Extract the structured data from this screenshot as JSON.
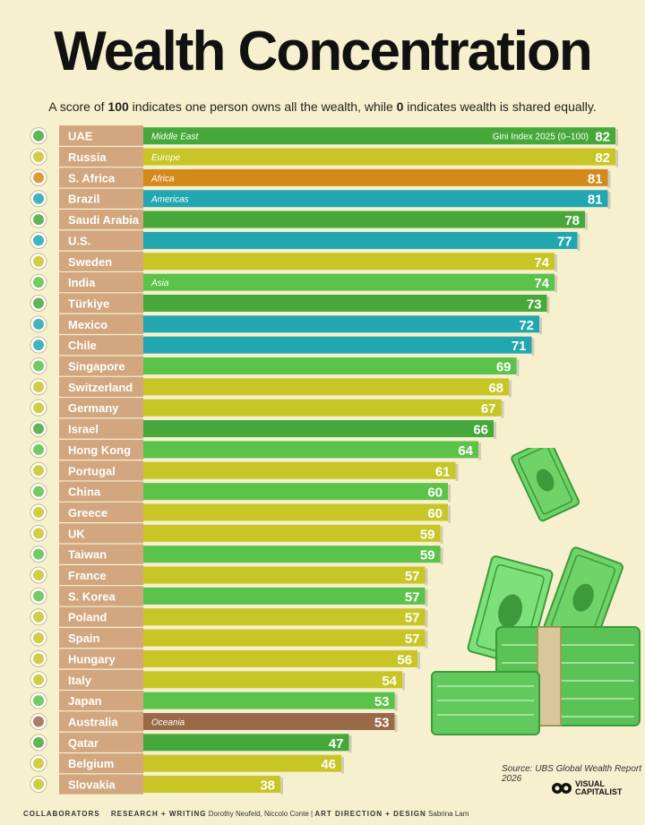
{
  "header": {
    "title": "Wealth Concentration",
    "subtitle_parts": [
      "A score of ",
      "100",
      " indicates one person owns all the wealth, while ",
      "0",
      " indicates wealth is shared equally."
    ]
  },
  "chart_data": {
    "type": "bar",
    "orientation": "horizontal",
    "title": "Wealth Concentration",
    "series_label": "Gini Index 2025 (0–100)",
    "xlim": [
      0,
      100
    ],
    "region_colors": {
      "Middle East": "#46a83a",
      "Europe": "#c7c626",
      "Africa": "#d48a1a",
      "Americas": "#22a6b0",
      "Asia": "#5bc24a",
      "Oceania": "#9a6a48"
    },
    "bars": [
      {
        "country": "UAE",
        "value": 82,
        "region": "Middle East",
        "region_label": "Middle East"
      },
      {
        "country": "Russia",
        "value": 82,
        "region": "Europe",
        "region_label": "Europe"
      },
      {
        "country": "S. Africa",
        "value": 81,
        "region": "Africa",
        "region_label": "Africa"
      },
      {
        "country": "Brazil",
        "value": 81,
        "region": "Americas",
        "region_label": "Americas"
      },
      {
        "country": "Saudi Arabia",
        "value": 78,
        "region": "Middle East",
        "region_label": ""
      },
      {
        "country": "U.S.",
        "value": 77,
        "region": "Americas",
        "region_label": ""
      },
      {
        "country": "Sweden",
        "value": 74,
        "region": "Europe",
        "region_label": ""
      },
      {
        "country": "India",
        "value": 74,
        "region": "Asia",
        "region_label": "Asia"
      },
      {
        "country": "Türkiye",
        "value": 73,
        "region": "Middle East",
        "region_label": ""
      },
      {
        "country": "Mexico",
        "value": 72,
        "region": "Americas",
        "region_label": ""
      },
      {
        "country": "Chile",
        "value": 71,
        "region": "Americas",
        "region_label": ""
      },
      {
        "country": "Singapore",
        "value": 69,
        "region": "Asia",
        "region_label": ""
      },
      {
        "country": "Switzerland",
        "value": 68,
        "region": "Europe",
        "region_label": ""
      },
      {
        "country": "Germany",
        "value": 67,
        "region": "Europe",
        "region_label": ""
      },
      {
        "country": "Israel",
        "value": 66,
        "region": "Middle East",
        "region_label": ""
      },
      {
        "country": "Hong Kong",
        "value": 64,
        "region": "Asia",
        "region_label": ""
      },
      {
        "country": "Portugal",
        "value": 61,
        "region": "Europe",
        "region_label": ""
      },
      {
        "country": "China",
        "value": 60,
        "region": "Asia",
        "region_label": ""
      },
      {
        "country": "Greece",
        "value": 60,
        "region": "Europe",
        "region_label": ""
      },
      {
        "country": "UK",
        "value": 59,
        "region": "Europe",
        "region_label": ""
      },
      {
        "country": "Taiwan",
        "value": 59,
        "region": "Asia",
        "region_label": ""
      },
      {
        "country": "France",
        "value": 57,
        "region": "Europe",
        "region_label": ""
      },
      {
        "country": "S. Korea",
        "value": 57,
        "region": "Asia",
        "region_label": ""
      },
      {
        "country": "Poland",
        "value": 57,
        "region": "Europe",
        "region_label": ""
      },
      {
        "country": "Spain",
        "value": 57,
        "region": "Europe",
        "region_label": ""
      },
      {
        "country": "Hungary",
        "value": 56,
        "region": "Europe",
        "region_label": ""
      },
      {
        "country": "Italy",
        "value": 54,
        "region": "Europe",
        "region_label": ""
      },
      {
        "country": "Japan",
        "value": 53,
        "region": "Asia",
        "region_label": ""
      },
      {
        "country": "Australia",
        "value": 53,
        "region": "Oceania",
        "region_label": "Oceania"
      },
      {
        "country": "Qatar",
        "value": 47,
        "region": "Middle East",
        "region_label": ""
      },
      {
        "country": "Belgium",
        "value": 46,
        "region": "Europe",
        "region_label": ""
      },
      {
        "country": "Slovakia",
        "value": 38,
        "region": "Europe",
        "region_label": ""
      }
    ]
  },
  "flags": [
    "uae-flag-icon",
    "russia-flag-icon",
    "south-africa-flag-icon",
    "brazil-flag-icon",
    "saudi-arabia-flag-icon",
    "us-flag-icon",
    "sweden-flag-icon",
    "india-flag-icon",
    "turkiye-flag-icon",
    "mexico-flag-icon",
    "chile-flag-icon",
    "singapore-flag-icon",
    "switzerland-flag-icon",
    "germany-flag-icon",
    "israel-flag-icon",
    "hong-kong-flag-icon",
    "portugal-flag-icon",
    "china-flag-icon",
    "greece-flag-icon",
    "uk-flag-icon",
    "taiwan-flag-icon",
    "france-flag-icon",
    "south-korea-flag-icon",
    "poland-flag-icon",
    "spain-flag-icon",
    "hungary-flag-icon",
    "italy-flag-icon",
    "japan-flag-icon",
    "australia-flag-icon",
    "qatar-flag-icon",
    "belgium-flag-icon",
    "slovakia-flag-icon"
  ],
  "source": "Source: UBS Global Wealth Report 2026",
  "logo": {
    "icon": "visual-capitalist-logo-icon",
    "line1": "VISUAL",
    "line2": "CAPITALIST"
  },
  "footer": {
    "collaborators": "COLLABORATORS",
    "research_label": "RESEARCH + WRITING",
    "research_names": "Dorothy Neufeld, Niccolo Conte",
    "separator": "|",
    "design_label": "ART DIRECTION + DESIGN",
    "design_names": "Sabrina Lam"
  }
}
